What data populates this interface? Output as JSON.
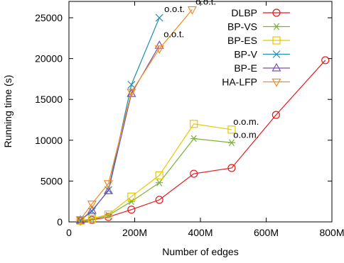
{
  "chart_data": {
    "type": "line",
    "xlabel": "Number of edges",
    "ylabel": "Running time (s)",
    "xlim": [
      0,
      800
    ],
    "ylim": [
      0,
      27000
    ],
    "x_ticks": [
      0,
      200,
      400,
      600,
      800
    ],
    "x_tick_labels": [
      "0",
      "200M",
      "400M",
      "600M",
      "800M"
    ],
    "y_ticks": [
      0,
      5000,
      10000,
      15000,
      20000,
      25000
    ],
    "y_tick_labels": [
      "0",
      "5000",
      "10000",
      "15000",
      "20000",
      "25000"
    ],
    "legend_position": "top-right",
    "grid": false,
    "series": [
      {
        "name": "DLBP",
        "color": "#e41a1c",
        "marker": "circle",
        "x": [
          35,
          70,
          120,
          190,
          275,
          380,
          495,
          630,
          780
        ],
        "y": [
          100,
          250,
          600,
          1500,
          2700,
          5900,
          6600,
          13100,
          19800
        ]
      },
      {
        "name": "BP-VS",
        "color": "#7ab335",
        "marker": "asterisk",
        "x": [
          35,
          70,
          120,
          190,
          275,
          380,
          495
        ],
        "y": [
          150,
          350,
          800,
          2500,
          4800,
          10200,
          9700
        ]
      },
      {
        "name": "BP-ES",
        "color": "#e6c800",
        "marker": "square",
        "x": [
          35,
          70,
          120,
          190,
          275,
          380,
          495
        ],
        "y": [
          150,
          400,
          900,
          3100,
          5700,
          12000,
          11300
        ]
      },
      {
        "name": "BP-V",
        "color": "#1f8fb0",
        "marker": "x",
        "x": [
          35,
          70,
          120,
          190,
          275
        ],
        "y": [
          200,
          1300,
          3900,
          16800,
          25000
        ]
      },
      {
        "name": "BP-E",
        "color": "#7b52ae",
        "marker": "triangle-up",
        "x": [
          35,
          70,
          120,
          190,
          275
        ],
        "y": [
          200,
          1400,
          3800,
          15700,
          21600
        ]
      },
      {
        "name": "HA-LFP",
        "color": "#f28a1c",
        "marker": "triangle-down",
        "x": [
          35,
          70,
          120,
          190,
          275,
          375
        ],
        "y": [
          300,
          2200,
          4700,
          15900,
          21200,
          26000
        ]
      }
    ],
    "annotations": [
      {
        "text": "o.o.t.",
        "x": 290,
        "y": 25700
      },
      {
        "text": "o.o.t.",
        "x": 288,
        "y": 22600
      },
      {
        "text": "o.o.t.",
        "x": 385,
        "y": 26600
      },
      {
        "text": "o.o.m.",
        "x": 500,
        "y": 11900
      },
      {
        "text": "o.o.m.",
        "x": 500,
        "y": 10300
      }
    ]
  }
}
